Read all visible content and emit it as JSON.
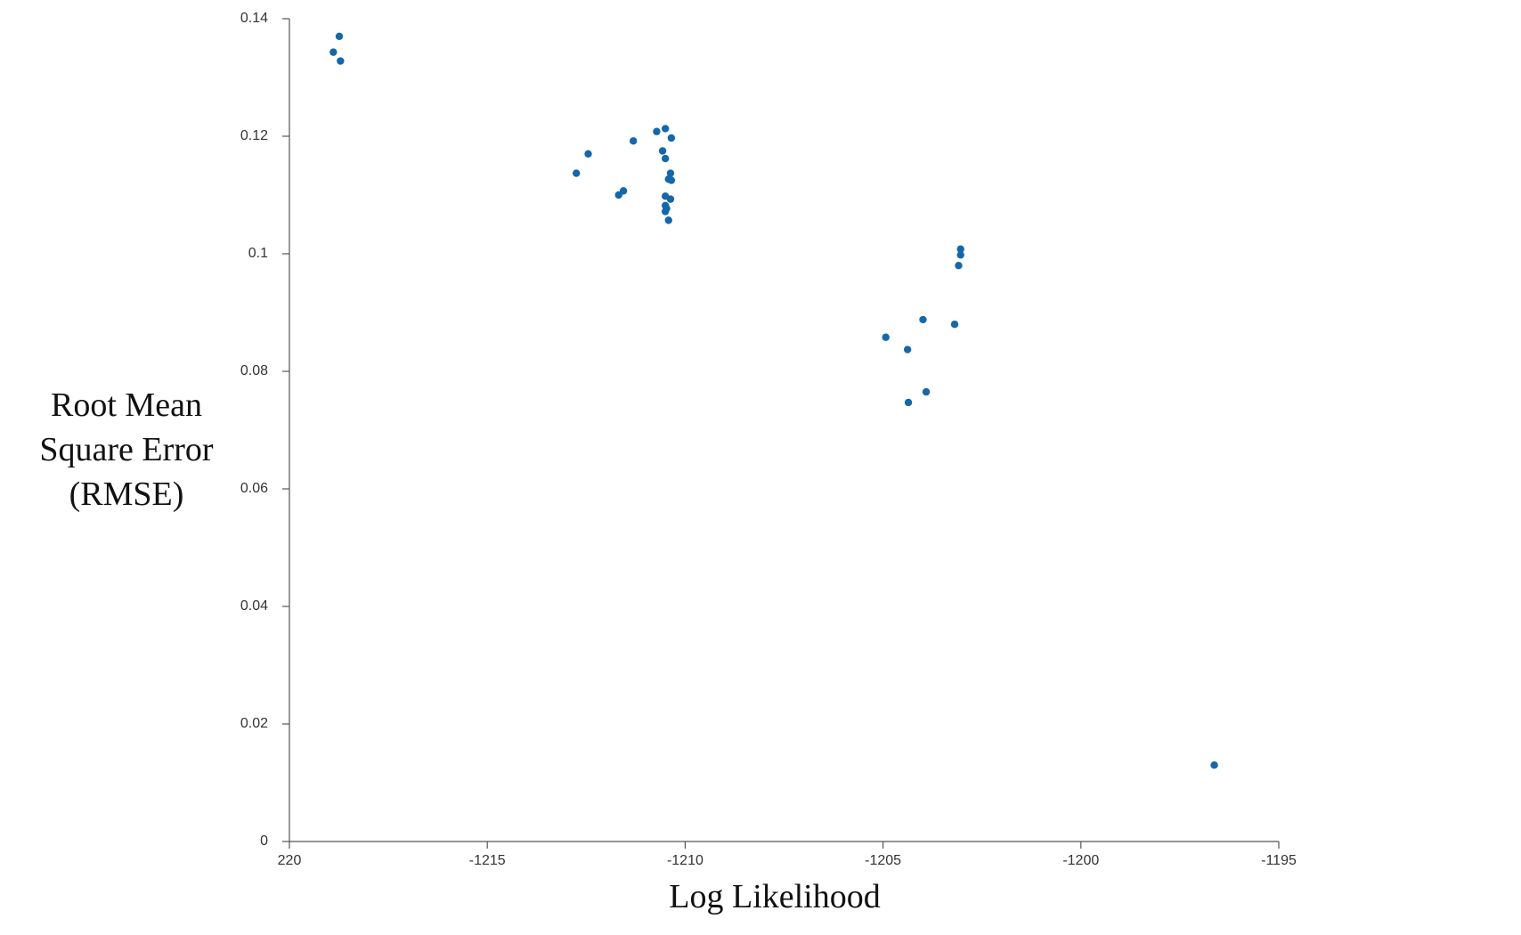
{
  "chart_data": {
    "type": "scatter",
    "xlabel": "Log Likelihood",
    "ylabel": "Root Mean Square Error (RMSE)",
    "series": [
      {
        "color": "#1467aa",
        "x": [
          -1218.89,
          -1218.74,
          -1218.71,
          -1212.75,
          -1212.45,
          -1211.68,
          -1211.56,
          -1211.31,
          -1210.72,
          -1210.5,
          -1210.35,
          -1210.57,
          -1210.5,
          -1210.37,
          -1210.42,
          -1210.35,
          -1210.5,
          -1210.37,
          -1210.5,
          -1210.47,
          -1210.5,
          -1210.42,
          -1204.93,
          -1204.38,
          -1203.99,
          -1203.91,
          -1204.36,
          -1203.19,
          -1203.09,
          -1203.04,
          -1203.04,
          -1196.63
        ],
        "values": [
          0.1343,
          0.137,
          0.1328,
          0.1137,
          0.117,
          0.11,
          0.1107,
          0.1192,
          0.1208,
          0.1213,
          0.1197,
          0.1175,
          0.1162,
          0.1137,
          0.1127,
          0.1125,
          0.1098,
          0.1093,
          0.1082,
          0.1077,
          0.1072,
          0.1057,
          0.0858,
          0.0837,
          0.0888,
          0.0765,
          0.0747,
          0.088,
          0.098,
          0.0998,
          0.1008,
          0.013
        ]
      }
    ],
    "xlim": [
      -1220,
      -1195
    ],
    "xticks": [
      {
        "value": -1220,
        "label": "220"
      },
      -1215,
      -1210,
      -1205,
      -1200,
      -1195
    ],
    "ylim": [
      0,
      0.14
    ],
    "yticks": [
      0,
      0.02,
      0.04,
      0.06,
      0.08,
      0.1,
      0.12,
      0.14
    ],
    "grid": false
  }
}
